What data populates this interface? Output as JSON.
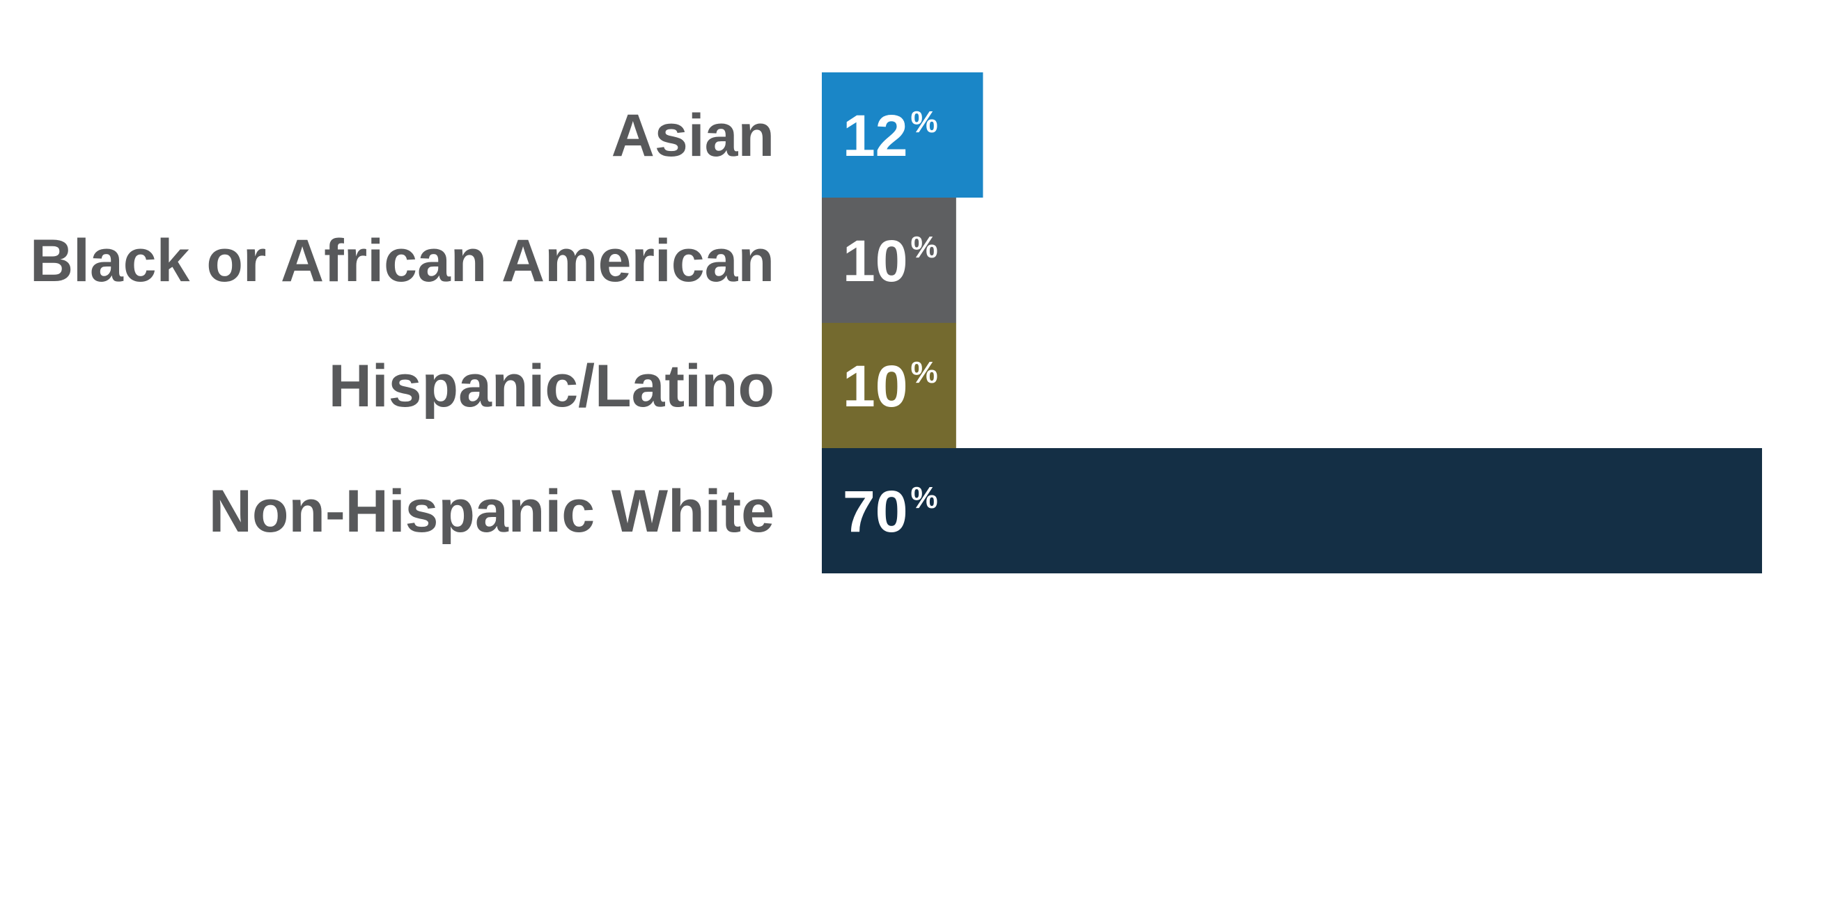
{
  "chart_data": {
    "type": "bar",
    "orientation": "horizontal",
    "categories": [
      "Asian",
      "Black or African American",
      "Hispanic/Latino",
      "Non-Hispanic White"
    ],
    "values": [
      12,
      10,
      10,
      70
    ],
    "value_labels": [
      "12",
      "10",
      "10",
      "70"
    ],
    "unit_suffix": "%",
    "colors": [
      "#1a86c7",
      "#5e5f61",
      "#746a2f",
      "#142f45"
    ],
    "label_color": "#58595b",
    "value_label_color": "#ffffff",
    "xlim": [
      0,
      70
    ],
    "title": "",
    "xlabel": "",
    "ylabel": "",
    "grid": false,
    "legend": "none"
  }
}
